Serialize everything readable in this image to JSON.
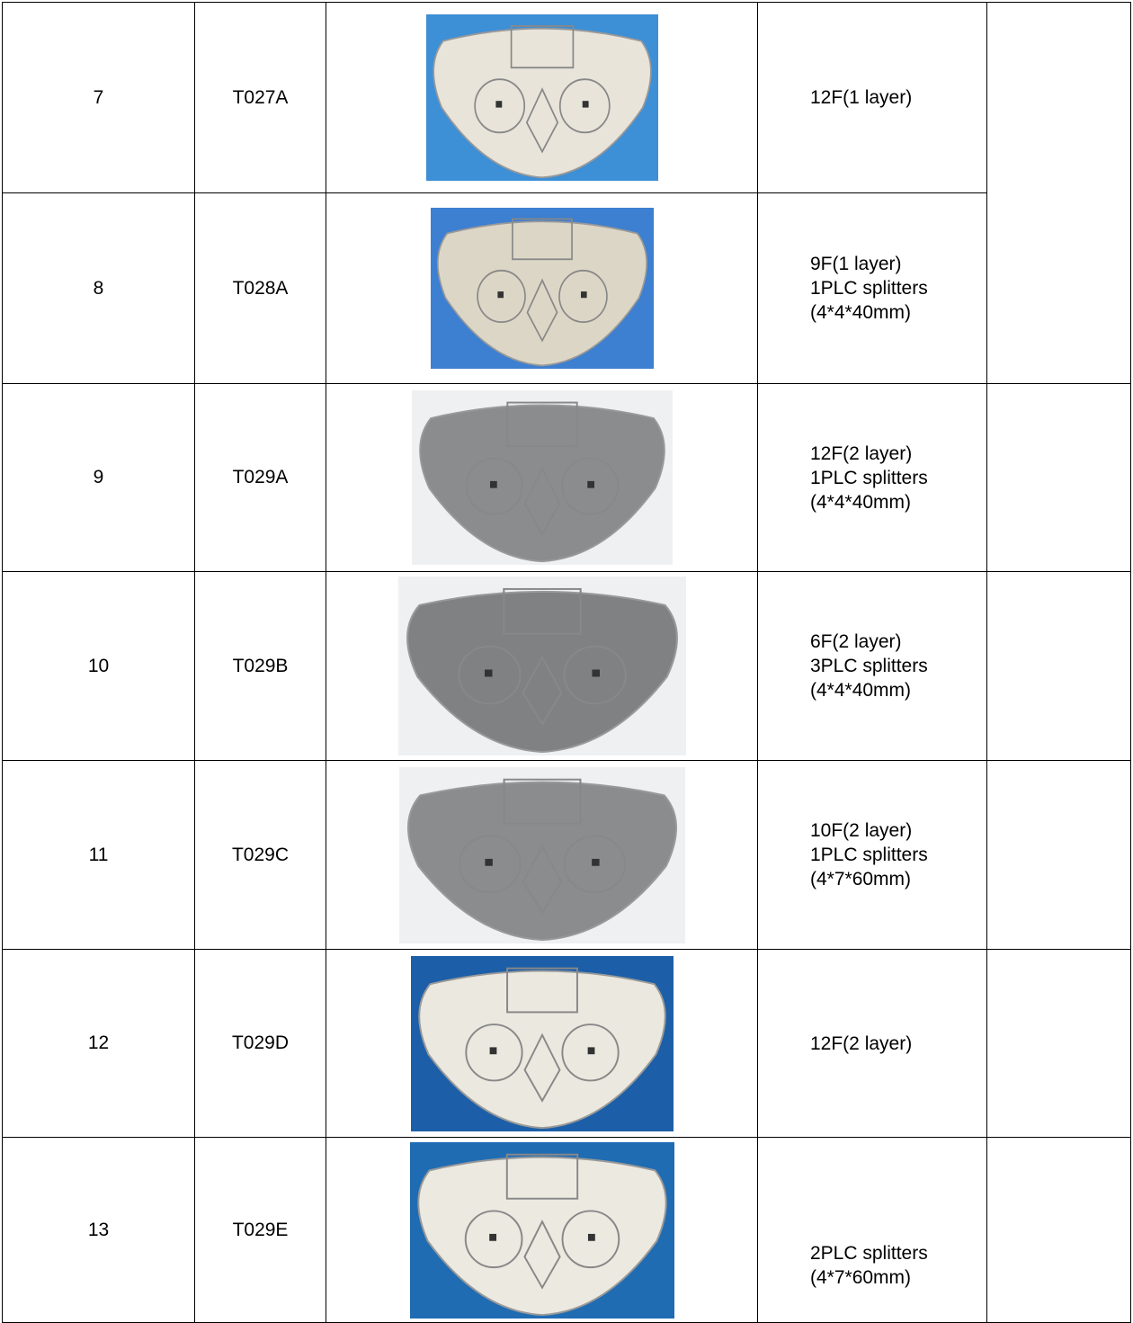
{
  "table": {
    "rows": [
      {
        "no": "7",
        "model": "T027A",
        "spec": [
          "12F(1 layer)"
        ]
      },
      {
        "no": "8",
        "model": "T028A",
        "spec": [
          "9F(1 layer)",
          "1PLC splitters",
          "(4*4*40mm)"
        ]
      },
      {
        "no": "9",
        "model": "T029A",
        "spec": [
          "12F(2 layer)",
          "1PLC splitters",
          "(4*4*40mm)"
        ]
      },
      {
        "no": "10",
        "model": "T029B",
        "spec": [
          "6F(2 layer)",
          "3PLC splitters",
          "(4*4*40mm)"
        ]
      },
      {
        "no": "11",
        "model": "T029C",
        "spec": [
          "10F(2 layer)",
          "1PLC splitters",
          "(4*7*60mm)"
        ]
      },
      {
        "no": "12",
        "model": "T029D",
        "spec": [
          "12F(2 layer)"
        ]
      },
      {
        "no": "13",
        "model": "T029E",
        "spec": [
          "2PLC splitters",
          "(4*7*60mm)"
        ]
      }
    ]
  }
}
